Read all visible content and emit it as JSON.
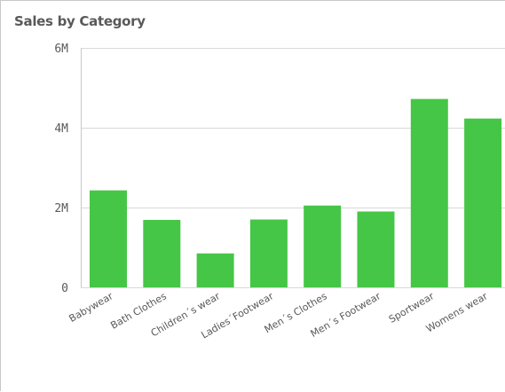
{
  "chart_data": {
    "type": "bar",
    "title": "Sales by Category",
    "xlabel": "",
    "ylabel": "",
    "categories": [
      "Babywear",
      "Bath Clothes",
      "Children´s wear",
      "Ladies´Footwear",
      "Men´s Clothes",
      "Men´s Footwear",
      "Sportwear",
      "Womens wear"
    ],
    "values": [
      2430000,
      1690000,
      850000,
      1700000,
      2050000,
      1900000,
      4720000,
      4230000
    ],
    "ylim": [
      0,
      6000000
    ],
    "yticks": [
      0,
      2000000,
      4000000,
      6000000
    ],
    "ytick_labels": [
      "0",
      "2M",
      "4M",
      "6M"
    ],
    "grid": true,
    "bar_color": "#46c646",
    "grid_color": "#d9d9d9"
  }
}
